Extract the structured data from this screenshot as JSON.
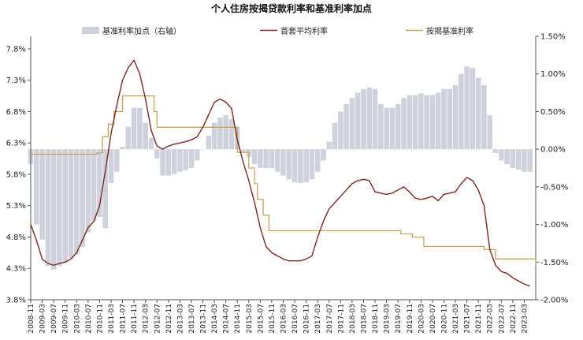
{
  "chart_data": {
    "type": "line",
    "title": "个人住房按揭贷款利率和基准利率加点",
    "legend": {
      "placement": "top",
      "items": [
        {
          "label": "基准利率加点（右轴）",
          "kind": "bar",
          "color": "#cfd2dc"
        },
        {
          "label": "首套平均利率",
          "kind": "line",
          "color": "#7a2a1f"
        },
        {
          "label": "按揭基准利率",
          "kind": "line",
          "color": "#c9a25a"
        }
      ]
    },
    "left_axis": {
      "ylim": [
        3.8,
        8.0
      ],
      "ticks": [
        3.8,
        4.3,
        4.8,
        5.3,
        5.8,
        6.3,
        6.8,
        7.3,
        7.8
      ],
      "tick_labels": [
        "3.8%",
        "4.3%",
        "4.8%",
        "5.3%",
        "5.8%",
        "6.3%",
        "6.8%",
        "7.3%",
        "7.8%"
      ]
    },
    "right_axis": {
      "ylim": [
        -2.0,
        1.5
      ],
      "ticks": [
        -2.0,
        -1.5,
        -1.0,
        -0.5,
        0.0,
        0.5,
        1.0,
        1.5
      ],
      "tick_labels": [
        "-2.00%",
        "-1.50%",
        "-1.00%",
        "-0.50%",
        "0.00%",
        "0.50%",
        "1.00%",
        "1.50%"
      ]
    },
    "x_axis": {
      "start": "2008-11",
      "end": "2023-07",
      "tick_labels": [
        "2008-11",
        "2009-03",
        "2009-07",
        "2009-11",
        "2010-03",
        "2010-07",
        "2010-11",
        "2011-03",
        "2011-07",
        "2011-11",
        "2012-03",
        "2012-07",
        "2012-11",
        "2013-03",
        "2013-07",
        "2013-11",
        "2014-03",
        "2014-07",
        "2014-11",
        "2015-03",
        "2015-07",
        "2015-11",
        "2016-03",
        "2016-07",
        "2016-11",
        "2017-03",
        "2017-07",
        "2017-11",
        "2018-03",
        "2018-07",
        "2018-11",
        "2019-03",
        "2019-07",
        "2019-11",
        "2020-03",
        "2020-07",
        "2020-11",
        "2021-03",
        "2021-07",
        "2021-11",
        "2022-03",
        "2022-07",
        "2022-11",
        "2023-03"
      ]
    },
    "colors": {
      "spread": "#cfd2dc",
      "first_home": "#7a2a1f",
      "benchmark": "#c9a25a",
      "axis": "#555555"
    },
    "series": [
      {
        "name": "基准利率加点（右轴）",
        "type": "bar",
        "axis": "right",
        "points": [
          [
            "2008-11",
            -0.2
          ],
          [
            "2009-01",
            -1.0
          ],
          [
            "2009-03",
            -1.2
          ],
          [
            "2009-05",
            -1.55
          ],
          [
            "2009-07",
            -1.6
          ],
          [
            "2009-09",
            -1.55
          ],
          [
            "2009-11",
            -1.5
          ],
          [
            "2010-01",
            -1.45
          ],
          [
            "2010-03",
            -1.4
          ],
          [
            "2010-05",
            -1.3
          ],
          [
            "2010-07",
            -1.1
          ],
          [
            "2010-09",
            -0.95
          ],
          [
            "2010-11",
            -0.9
          ],
          [
            "2011-01",
            -1.05
          ],
          [
            "2011-03",
            -0.45
          ],
          [
            "2011-05",
            -0.3
          ],
          [
            "2011-07",
            0.03
          ],
          [
            "2011-09",
            0.3
          ],
          [
            "2011-11",
            0.55
          ],
          [
            "2012-01",
            0.55
          ],
          [
            "2012-03",
            0.35
          ],
          [
            "2012-05",
            0.15
          ],
          [
            "2012-07",
            -0.12
          ],
          [
            "2012-09",
            -0.35
          ],
          [
            "2012-11",
            -0.35
          ],
          [
            "2013-01",
            -0.33
          ],
          [
            "2013-03",
            -0.3
          ],
          [
            "2013-05",
            -0.28
          ],
          [
            "2013-07",
            -0.25
          ],
          [
            "2013-09",
            -0.15
          ],
          [
            "2013-11",
            0.0
          ],
          [
            "2014-01",
            0.18
          ],
          [
            "2014-03",
            0.35
          ],
          [
            "2014-05",
            0.42
          ],
          [
            "2014-07",
            0.45
          ],
          [
            "2014-09",
            0.4
          ],
          [
            "2014-11",
            0.3
          ],
          [
            "2015-01",
            -0.05
          ],
          [
            "2015-03",
            -0.1
          ],
          [
            "2015-05",
            -0.2
          ],
          [
            "2015-07",
            -0.25
          ],
          [
            "2015-09",
            -0.25
          ],
          [
            "2015-11",
            -0.25
          ],
          [
            "2016-01",
            -0.3
          ],
          [
            "2016-03",
            -0.35
          ],
          [
            "2016-05",
            -0.4
          ],
          [
            "2016-07",
            -0.44
          ],
          [
            "2016-09",
            -0.45
          ],
          [
            "2016-11",
            -0.44
          ],
          [
            "2017-01",
            -0.4
          ],
          [
            "2017-03",
            -0.3
          ],
          [
            "2017-05",
            -0.15
          ],
          [
            "2017-07",
            0.1
          ],
          [
            "2017-09",
            0.35
          ],
          [
            "2017-11",
            0.5
          ],
          [
            "2018-01",
            0.6
          ],
          [
            "2018-03",
            0.68
          ],
          [
            "2018-05",
            0.75
          ],
          [
            "2018-07",
            0.8
          ],
          [
            "2018-09",
            0.82
          ],
          [
            "2018-11",
            0.8
          ],
          [
            "2019-01",
            0.6
          ],
          [
            "2019-03",
            0.55
          ],
          [
            "2019-05",
            0.55
          ],
          [
            "2019-07",
            0.6
          ],
          [
            "2019-09",
            0.68
          ],
          [
            "2019-11",
            0.72
          ],
          [
            "2020-01",
            0.72
          ],
          [
            "2020-03",
            0.74
          ],
          [
            "2020-05",
            0.72
          ],
          [
            "2020-07",
            0.72
          ],
          [
            "2020-09",
            0.75
          ],
          [
            "2020-11",
            0.8
          ],
          [
            "2021-01",
            0.8
          ],
          [
            "2021-03",
            0.85
          ],
          [
            "2021-05",
            1.0
          ],
          [
            "2021-07",
            1.1
          ],
          [
            "2021-09",
            1.08
          ],
          [
            "2021-11",
            0.95
          ],
          [
            "2022-01",
            0.85
          ],
          [
            "2022-03",
            0.45
          ],
          [
            "2022-05",
            -0.05
          ],
          [
            "2022-07",
            -0.15
          ],
          [
            "2022-09",
            -0.2
          ],
          [
            "2022-11",
            -0.25
          ],
          [
            "2023-01",
            -0.27
          ],
          [
            "2023-03",
            -0.3
          ],
          [
            "2023-05",
            -0.3
          ]
        ]
      },
      {
        "name": "首套平均利率",
        "type": "line",
        "axis": "left",
        "points": [
          [
            "2008-11",
            5.0
          ],
          [
            "2009-01",
            4.75
          ],
          [
            "2009-03",
            4.45
          ],
          [
            "2009-05",
            4.38
          ],
          [
            "2009-07",
            4.35
          ],
          [
            "2009-09",
            4.38
          ],
          [
            "2009-11",
            4.4
          ],
          [
            "2010-01",
            4.45
          ],
          [
            "2010-03",
            4.55
          ],
          [
            "2010-05",
            4.75
          ],
          [
            "2010-07",
            4.95
          ],
          [
            "2010-09",
            5.05
          ],
          [
            "2010-11",
            5.3
          ],
          [
            "2011-01",
            5.85
          ],
          [
            "2011-03",
            6.45
          ],
          [
            "2011-05",
            6.9
          ],
          [
            "2011-07",
            7.3
          ],
          [
            "2011-09",
            7.5
          ],
          [
            "2011-11",
            7.62
          ],
          [
            "2012-01",
            7.4
          ],
          [
            "2012-03",
            7.0
          ],
          [
            "2012-05",
            6.5
          ],
          [
            "2012-07",
            6.25
          ],
          [
            "2012-09",
            6.2
          ],
          [
            "2012-11",
            6.25
          ],
          [
            "2013-01",
            6.28
          ],
          [
            "2013-03",
            6.3
          ],
          [
            "2013-05",
            6.32
          ],
          [
            "2013-07",
            6.35
          ],
          [
            "2013-09",
            6.4
          ],
          [
            "2013-11",
            6.55
          ],
          [
            "2014-01",
            6.75
          ],
          [
            "2014-03",
            6.95
          ],
          [
            "2014-05",
            7.0
          ],
          [
            "2014-07",
            6.95
          ],
          [
            "2014-09",
            6.85
          ],
          [
            "2014-11",
            6.35
          ],
          [
            "2015-01",
            6.0
          ],
          [
            "2015-03",
            5.7
          ],
          [
            "2015-05",
            5.35
          ],
          [
            "2015-07",
            4.95
          ],
          [
            "2015-09",
            4.65
          ],
          [
            "2015-11",
            4.55
          ],
          [
            "2016-01",
            4.5
          ],
          [
            "2016-03",
            4.45
          ],
          [
            "2016-05",
            4.42
          ],
          [
            "2016-07",
            4.42
          ],
          [
            "2016-09",
            4.42
          ],
          [
            "2016-11",
            4.45
          ],
          [
            "2017-01",
            4.5
          ],
          [
            "2017-03",
            4.8
          ],
          [
            "2017-05",
            5.05
          ],
          [
            "2017-07",
            5.25
          ],
          [
            "2017-09",
            5.35
          ],
          [
            "2017-11",
            5.45
          ],
          [
            "2018-01",
            5.55
          ],
          [
            "2018-03",
            5.65
          ],
          [
            "2018-05",
            5.7
          ],
          [
            "2018-07",
            5.72
          ],
          [
            "2018-09",
            5.7
          ],
          [
            "2018-11",
            5.52
          ],
          [
            "2019-01",
            5.5
          ],
          [
            "2019-03",
            5.48
          ],
          [
            "2019-05",
            5.5
          ],
          [
            "2019-07",
            5.55
          ],
          [
            "2019-09",
            5.6
          ],
          [
            "2019-11",
            5.52
          ],
          [
            "2020-01",
            5.42
          ],
          [
            "2020-03",
            5.4
          ],
          [
            "2020-05",
            5.42
          ],
          [
            "2020-07",
            5.45
          ],
          [
            "2020-09",
            5.38
          ],
          [
            "2020-11",
            5.48
          ],
          [
            "2021-01",
            5.5
          ],
          [
            "2021-03",
            5.52
          ],
          [
            "2021-05",
            5.65
          ],
          [
            "2021-07",
            5.75
          ],
          [
            "2021-09",
            5.7
          ],
          [
            "2021-11",
            5.55
          ],
          [
            "2022-01",
            5.3
          ],
          [
            "2022-03",
            4.6
          ],
          [
            "2022-05",
            4.35
          ],
          [
            "2022-07",
            4.25
          ],
          [
            "2022-09",
            4.22
          ],
          [
            "2022-11",
            4.15
          ],
          [
            "2023-01",
            4.1
          ],
          [
            "2023-03",
            4.05
          ],
          [
            "2023-05",
            4.02
          ]
        ]
      },
      {
        "name": "按揭基准利率",
        "type": "step",
        "axis": "left",
        "points": [
          [
            "2008-11",
            6.12
          ],
          [
            "2010-10",
            6.14
          ],
          [
            "2010-12",
            6.4
          ],
          [
            "2011-02",
            6.6
          ],
          [
            "2011-04",
            6.8
          ],
          [
            "2011-07",
            7.05
          ],
          [
            "2012-06",
            6.8
          ],
          [
            "2012-07",
            6.55
          ],
          [
            "2014-11",
            6.15
          ],
          [
            "2015-03",
            5.9
          ],
          [
            "2015-05",
            5.65
          ],
          [
            "2015-06",
            5.4
          ],
          [
            "2015-08",
            5.15
          ],
          [
            "2015-10",
            4.9
          ],
          [
            "2019-08",
            4.85
          ],
          [
            "2019-12",
            4.8
          ],
          [
            "2020-04",
            4.65
          ],
          [
            "2022-01",
            4.6
          ],
          [
            "2022-05",
            4.45
          ],
          [
            "2023-07",
            4.35
          ]
        ]
      }
    ]
  }
}
